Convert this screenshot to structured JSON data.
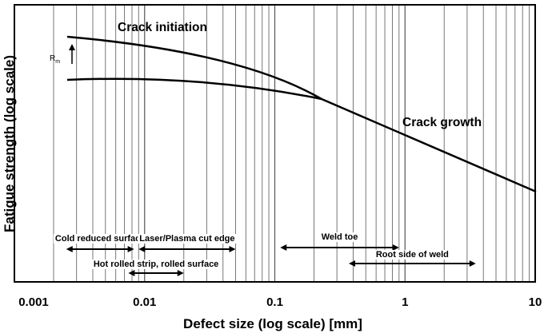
{
  "chart_data": {
    "type": "line",
    "x_scale": "log",
    "y_scale": "log",
    "xlim": [
      0.001,
      10
    ],
    "xlabel": "Defect size (log scale) [mm]",
    "ylabel": "Fatigue strength (log scale)",
    "x_ticks": [
      {
        "value": 0.001,
        "label": "0.001"
      },
      {
        "value": 0.01,
        "label": "0.01"
      },
      {
        "value": 0.1,
        "label": "0.1"
      },
      {
        "value": 1,
        "label": "1"
      },
      {
        "value": 10,
        "label": "10"
      }
    ],
    "grid": "vertical minor lines at every log subdivision",
    "curves": [
      {
        "name": "Crack initiation",
        "x": [
          0.002,
          0.005,
          0.01,
          0.03,
          0.1,
          0.21
        ]
      },
      {
        "name": "lower branch",
        "x": [
          0.002,
          0.005,
          0.01,
          0.05,
          0.21
        ]
      },
      {
        "name": "Crack growth",
        "x": [
          0.21,
          1,
          10
        ]
      }
    ],
    "annotations": {
      "rm": {
        "text": "R",
        "sub": "m"
      }
    },
    "ranges": [
      {
        "label": "Cold reduced surface",
        "from": 0.0025,
        "to": 0.0083
      },
      {
        "label": "Laser/Plasma cut edge",
        "from": 0.009,
        "to": 0.05
      },
      {
        "label": "Hot rolled strip, rolled surface",
        "from": 0.0075,
        "to": 0.02
      },
      {
        "label": "Weld toe",
        "from": 0.11,
        "to": 0.9
      },
      {
        "label": "Root side of weld",
        "from": 0.37,
        "to": 3.5
      }
    ]
  }
}
